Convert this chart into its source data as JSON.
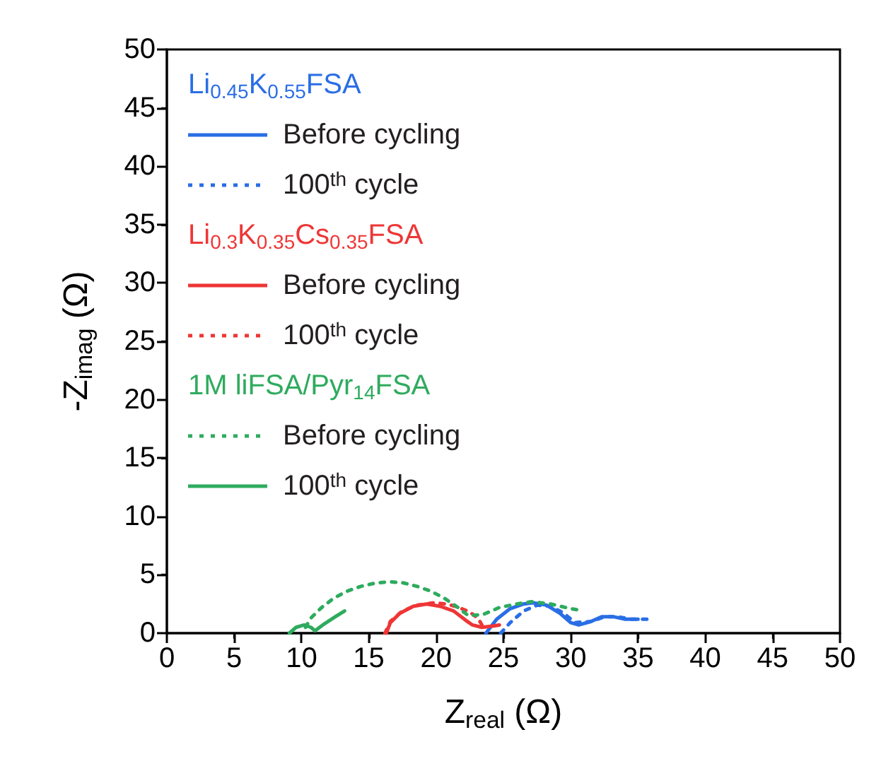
{
  "chart_data": {
    "type": "line",
    "xlabel": "Z$_{real}$ (Ω)",
    "ylabel": "-Z$_{imag}$ (Ω)",
    "xlim": [
      0,
      50
    ],
    "ylim": [
      0,
      50
    ],
    "xticks": [
      0,
      5,
      10,
      15,
      20,
      25,
      30,
      35,
      40,
      45,
      50
    ],
    "yticks": [
      0,
      5,
      10,
      15,
      20,
      25,
      30,
      35,
      40,
      45,
      50
    ],
    "grid": false,
    "legend": "top left",
    "marker": "none",
    "annotations": [
      "Li$_{0.45}$K$_{0.55}$FSA",
      "Li$_{0.3}$K$_{0.35}$Cs$_{0.35}$FSA",
      "1M liFSA/Pyr$_{14}$FSA"
    ],
    "series": [
      {
        "name": "Before cycling",
        "color": "#2a6ee6",
        "line_style": "solid",
        "x": [
          23.7,
          24.5,
          25.5,
          26.5,
          27.2,
          28.2,
          29.2,
          30.0,
          30.6,
          31.5,
          32.3,
          33.2,
          34.0,
          35.0
        ],
        "values": [
          0,
          1.2,
          2.1,
          2.5,
          2.6,
          2.4,
          1.7,
          0.9,
          0.7,
          1.0,
          1.4,
          1.4,
          1.2,
          1.2
        ]
      },
      {
        "name": "100$^{th}$ cycle",
        "color": "#2a6ee6",
        "line_style": "dotted",
        "x": [
          24.8,
          25.5,
          26.5,
          27.5,
          28.5,
          29.5,
          30.3,
          31.5,
          32.5,
          33.5,
          34.5,
          36.0
        ],
        "values": [
          0,
          0.9,
          1.9,
          2.4,
          2.3,
          1.7,
          0.9,
          1.0,
          1.4,
          1.4,
          1.2,
          1.2
        ]
      },
      {
        "name": "Before cycling",
        "color": "#ee3636",
        "line_style": "solid",
        "x": [
          16.3,
          16.6,
          17.3,
          18.3,
          19.3,
          20.3,
          21.3,
          22.2,
          22.7,
          23.4,
          24.2,
          24.7
        ],
        "values": [
          0,
          0.9,
          1.7,
          2.3,
          2.5,
          2.3,
          1.9,
          1.1,
          0.7,
          0.5,
          0.6,
          0.7
        ]
      },
      {
        "name": "100$^{th}$ cycle",
        "color": "#ee3636",
        "line_style": "dotted",
        "x": [
          16.2,
          16.6,
          17.5,
          18.6,
          19.8,
          20.8,
          21.7,
          22.5,
          23.1,
          23.5
        ],
        "values": [
          0,
          1.0,
          1.9,
          2.4,
          2.6,
          2.5,
          2.2,
          1.8,
          1.3,
          0.5
        ]
      },
      {
        "name": "Before cycling",
        "color": "#2eab5e",
        "line_style": "dotted",
        "x": [
          10.3,
          10.7,
          11.5,
          12.4,
          13.4,
          14.4,
          15.5,
          16.6,
          17.6,
          18.6,
          19.6,
          20.6,
          21.5,
          22.4,
          23.5,
          24.7,
          26.0,
          27.1,
          28.5,
          30.0,
          30.5
        ],
        "values": [
          0.5,
          1.3,
          2.2,
          3.0,
          3.6,
          4.0,
          4.3,
          4.4,
          4.3,
          4.0,
          3.6,
          3.0,
          2.3,
          1.5,
          1.6,
          2.2,
          2.5,
          2.7,
          2.5,
          2.1,
          2.0
        ]
      },
      {
        "name": "100$^{th}$ cycle",
        "color": "#2eab5e",
        "line_style": "solid",
        "x": [
          9.1,
          9.6,
          10.2,
          10.7,
          11.0,
          11.7,
          12.5,
          13.2
        ],
        "values": [
          0,
          0.5,
          0.7,
          0.5,
          0.2,
          0.8,
          1.4,
          1.9
        ]
      }
    ]
  }
}
